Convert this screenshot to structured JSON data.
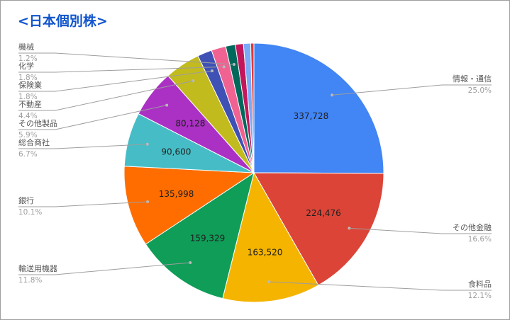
{
  "chart_data": {
    "type": "pie",
    "title": "<日本個別株>",
    "legend": "none",
    "slices": [
      {
        "label": "情報・通信",
        "value": 337728,
        "percent": "25.0%",
        "color": "#4285f4",
        "value_label": "337,728"
      },
      {
        "label": "その他金融",
        "value": 224476,
        "percent": "16.6%",
        "color": "#db4437",
        "value_label": "224,476"
      },
      {
        "label": "食料品",
        "value": 163520,
        "percent": "12.1%",
        "color": "#f4b400",
        "value_label": "163,520"
      },
      {
        "label": "輸送用機器",
        "value": 159329,
        "percent": "11.8%",
        "color": "#0f9d58",
        "value_label": "159,329"
      },
      {
        "label": "銀行",
        "value": 135998,
        "percent": "10.1%",
        "color": "#ff6d00",
        "value_label": "135,998"
      },
      {
        "label": "総合商社",
        "value": 90600,
        "percent": "6.7%",
        "color": "#46bdc6",
        "value_label": "90,600"
      },
      {
        "label": "その他製品",
        "value": 80128,
        "percent": "5.9%",
        "color": "#ab30c4",
        "value_label": "80,128"
      },
      {
        "label": "不動産",
        "value": 59500,
        "percent": "4.4%",
        "color": "#c2bb1e",
        "value_label": ""
      },
      {
        "label": "保険業",
        "value": 24300,
        "percent": "1.8%",
        "color": "#3f51b5",
        "value_label": ""
      },
      {
        "label": "化学",
        "value": 24300,
        "percent": "1.8%",
        "color": "#f06292",
        "value_label": ""
      },
      {
        "label": "機械",
        "value": 16200,
        "percent": "1.2%",
        "color": "#00695c",
        "value_label": ""
      },
      {
        "label": "",
        "value": 13500,
        "percent": "",
        "color": "#c2185b",
        "value_label": ""
      },
      {
        "label": "",
        "value": 12000,
        "percent": "",
        "color": "#7baaf7",
        "value_label": ""
      },
      {
        "label": "",
        "value": 5400,
        "percent": "",
        "color": "#e53935",
        "value_label": ""
      }
    ]
  }
}
